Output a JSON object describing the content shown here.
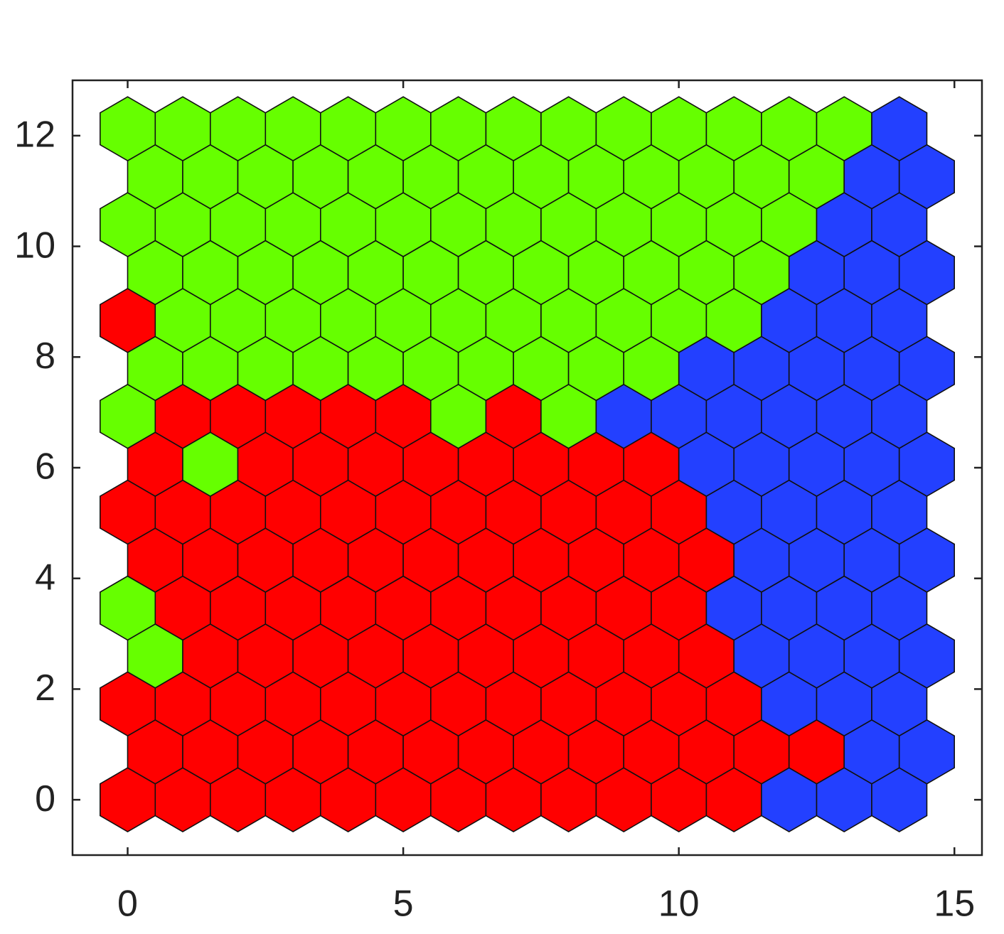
{
  "chart_data": {
    "type": "hexmap",
    "xlim": [
      -1,
      15.5
    ],
    "ylim": [
      -1,
      13
    ],
    "xticks": [
      0,
      5,
      10,
      15
    ],
    "yticks": [
      0,
      2,
      4,
      6,
      8,
      10,
      12
    ],
    "colors": [
      "#ff0000",
      "#66ff00",
      "#2340ff"
    ],
    "cells": [
      [
        0,
        0,
        0,
        0,
        0,
        0,
        0,
        0,
        0,
        0,
        0,
        0,
        2,
        2,
        2
      ],
      [
        0,
        0,
        0,
        0,
        0,
        0,
        0,
        0,
        0,
        0,
        0,
        0,
        0,
        2,
        2
      ],
      [
        0,
        0,
        0,
        0,
        0,
        0,
        0,
        0,
        0,
        0,
        0,
        0,
        2,
        2,
        2
      ],
      [
        1,
        0,
        0,
        0,
        0,
        0,
        0,
        0,
        0,
        0,
        0,
        2,
        2,
        2,
        2
      ],
      [
        1,
        0,
        0,
        0,
        0,
        0,
        0,
        0,
        0,
        0,
        0,
        2,
        2,
        2,
        2
      ],
      [
        0,
        0,
        0,
        0,
        0,
        0,
        0,
        0,
        0,
        0,
        0,
        2,
        2,
        2,
        2
      ],
      [
        0,
        0,
        0,
        0,
        0,
        0,
        0,
        0,
        0,
        0,
        0,
        2,
        2,
        2,
        2
      ],
      [
        0,
        1,
        0,
        0,
        0,
        0,
        0,
        0,
        0,
        0,
        2,
        2,
        2,
        2,
        2
      ],
      [
        1,
        0,
        0,
        0,
        0,
        0,
        1,
        0,
        1,
        2,
        2,
        2,
        2,
        2,
        2
      ],
      [
        1,
        1,
        1,
        1,
        1,
        1,
        1,
        1,
        1,
        1,
        2,
        2,
        2,
        2,
        2
      ],
      [
        0,
        1,
        1,
        1,
        1,
        1,
        1,
        1,
        1,
        1,
        1,
        1,
        2,
        2,
        2
      ],
      [
        1,
        1,
        1,
        1,
        1,
        1,
        1,
        1,
        1,
        1,
        1,
        1,
        2,
        2,
        2
      ],
      [
        1,
        1,
        1,
        1,
        1,
        1,
        1,
        1,
        1,
        1,
        1,
        1,
        1,
        2,
        2
      ],
      [
        1,
        1,
        1,
        1,
        1,
        1,
        1,
        1,
        1,
        1,
        1,
        1,
        1,
        2,
        2
      ],
      [
        1,
        1,
        1,
        1,
        1,
        1,
        1,
        1,
        1,
        1,
        1,
        1,
        1,
        1,
        2
      ]
    ]
  }
}
